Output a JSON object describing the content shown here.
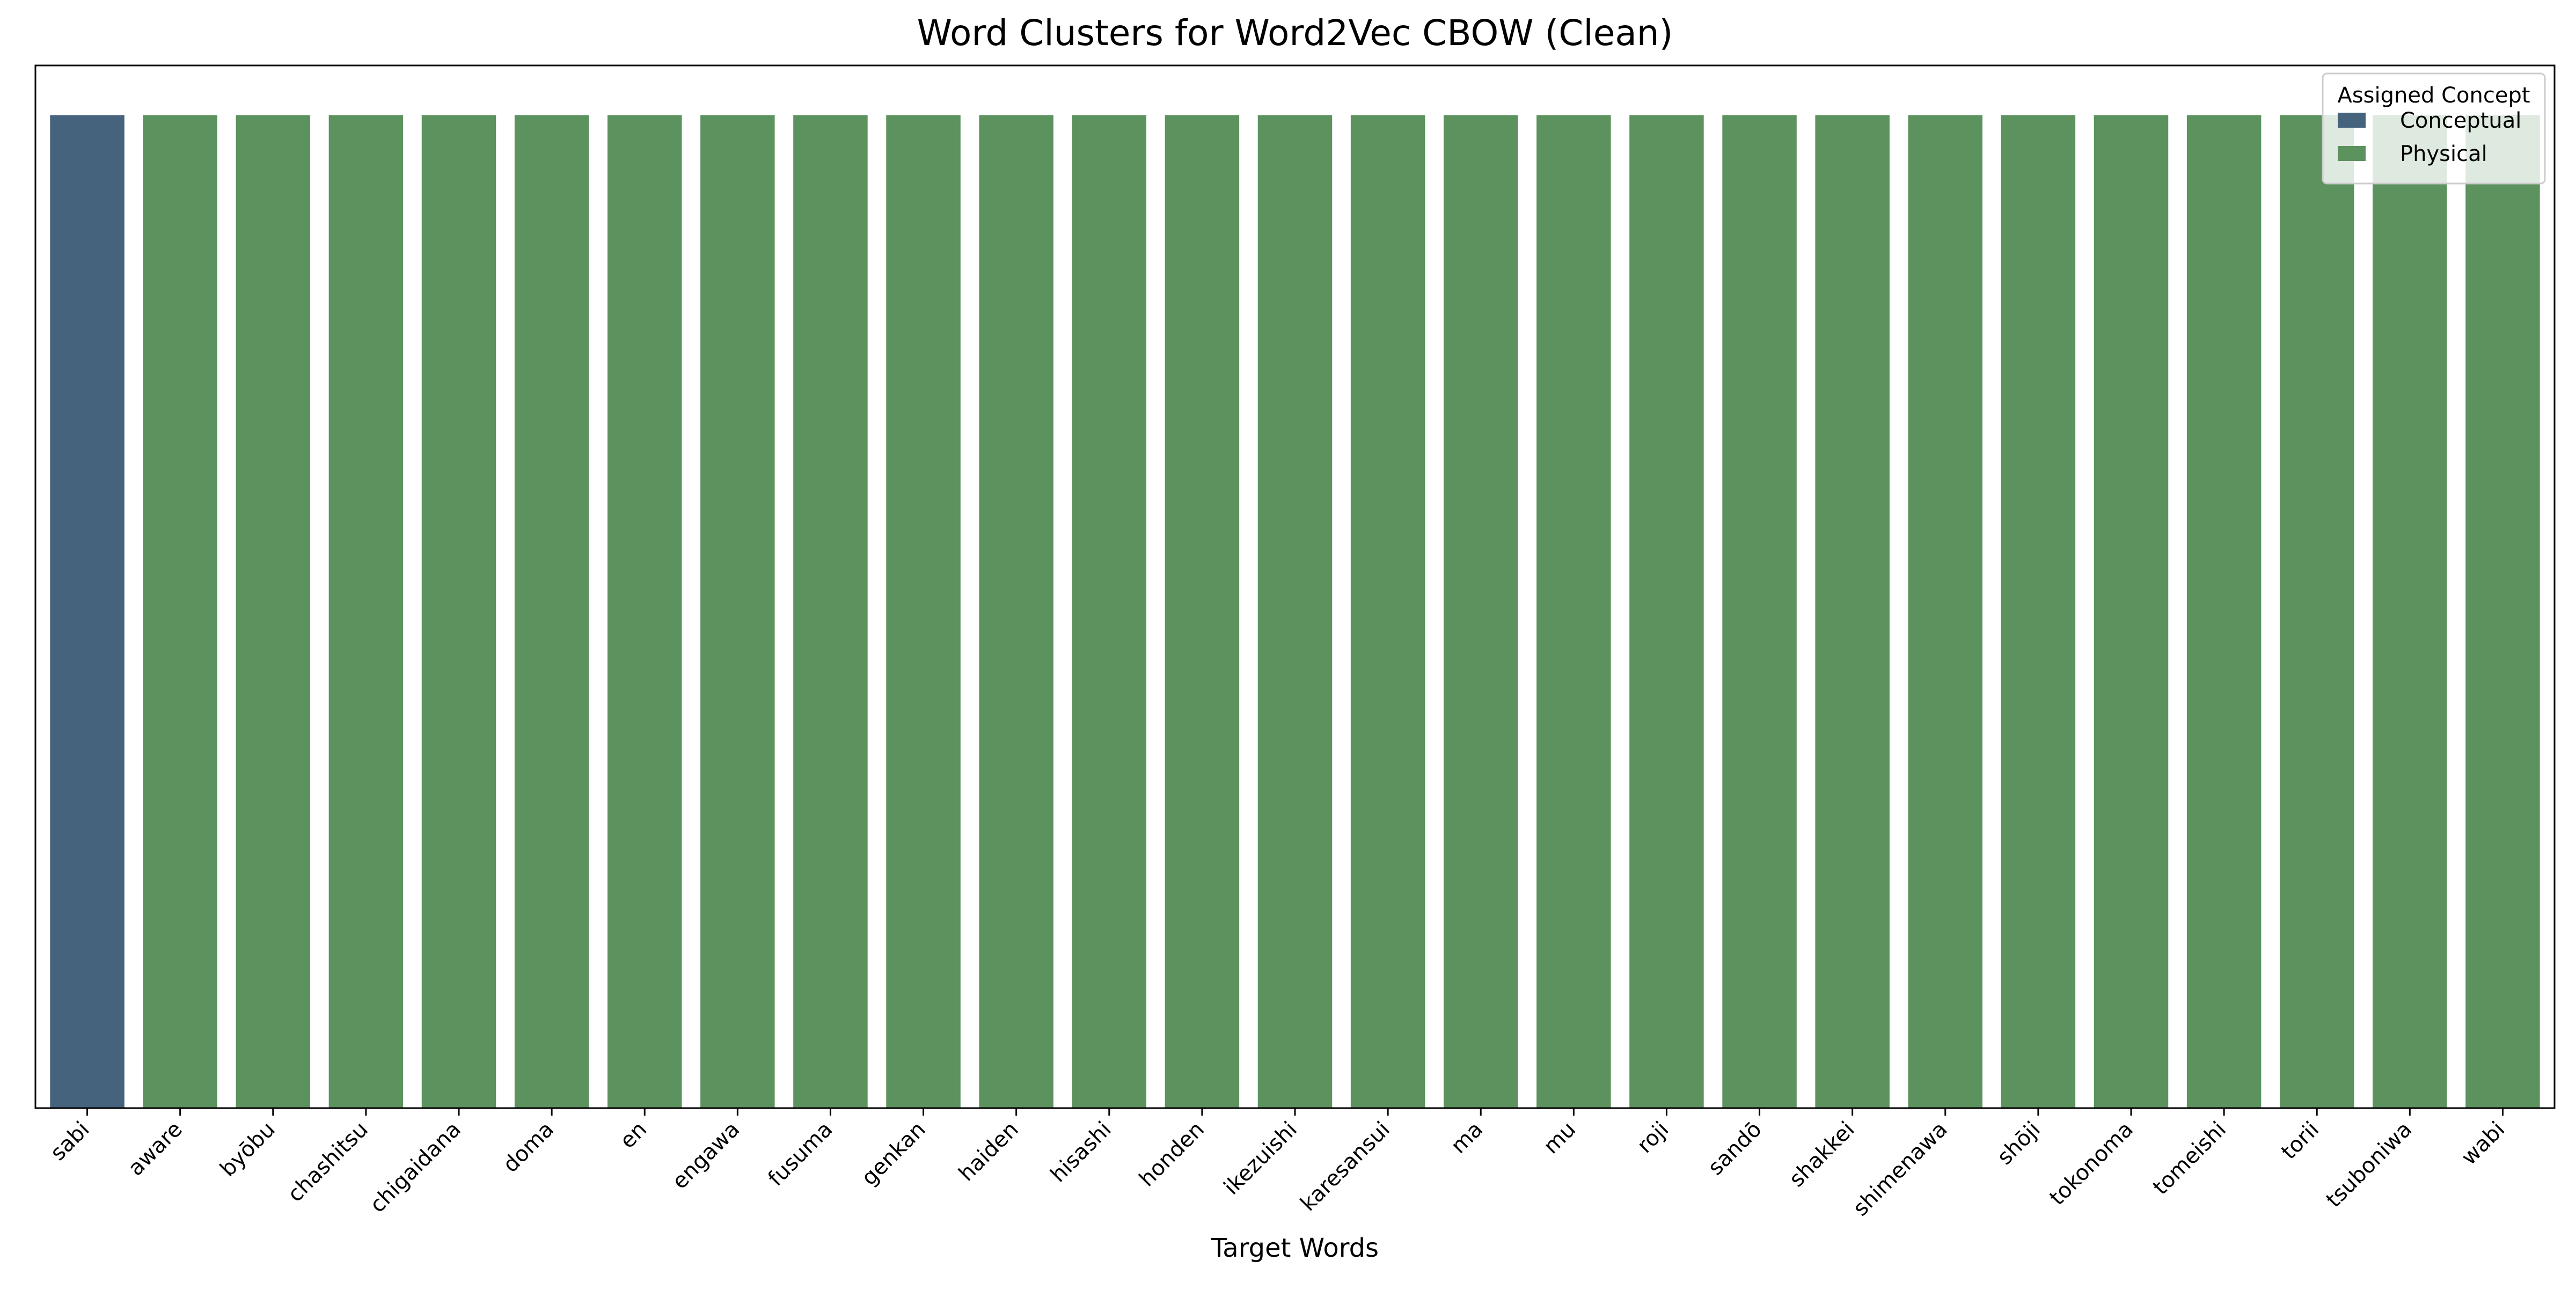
{
  "chart_data": {
    "type": "bar",
    "title": "Word Clusters for Word2Vec CBOW (Clean)",
    "xlabel": "Target Words",
    "ylabel": "",
    "ylim": [
      0,
      1.05
    ],
    "grid": false,
    "legend_placement": "top-right",
    "legend_title": "Assigned Concept",
    "categories": [
      "sabi",
      "aware",
      "byōbu",
      "chashitsu",
      "chigaidana",
      "doma",
      "en",
      "engawa",
      "fusuma",
      "genkan",
      "haiden",
      "hisashi",
      "honden",
      "ikezuishi",
      "karesansui",
      "ma",
      "mu",
      "roji",
      "sandō",
      "shakkei",
      "shimenawa",
      "shōji",
      "tokonoma",
      "tomeishi",
      "torii",
      "tsuboniwa",
      "wabi"
    ],
    "values": [
      1,
      1,
      1,
      1,
      1,
      1,
      1,
      1,
      1,
      1,
      1,
      1,
      1,
      1,
      1,
      1,
      1,
      1,
      1,
      1,
      1,
      1,
      1,
      1,
      1,
      1,
      1
    ],
    "groups": [
      "Conceptual",
      "Physical",
      "Physical",
      "Physical",
      "Physical",
      "Physical",
      "Physical",
      "Physical",
      "Physical",
      "Physical",
      "Physical",
      "Physical",
      "Physical",
      "Physical",
      "Physical",
      "Physical",
      "Physical",
      "Physical",
      "Physical",
      "Physical",
      "Physical",
      "Physical",
      "Physical",
      "Physical",
      "Physical",
      "Physical",
      "Physical"
    ],
    "series": [
      {
        "name": "Conceptual",
        "color": "#45637d"
      },
      {
        "name": "Physical",
        "color": "#5b925e"
      }
    ]
  }
}
